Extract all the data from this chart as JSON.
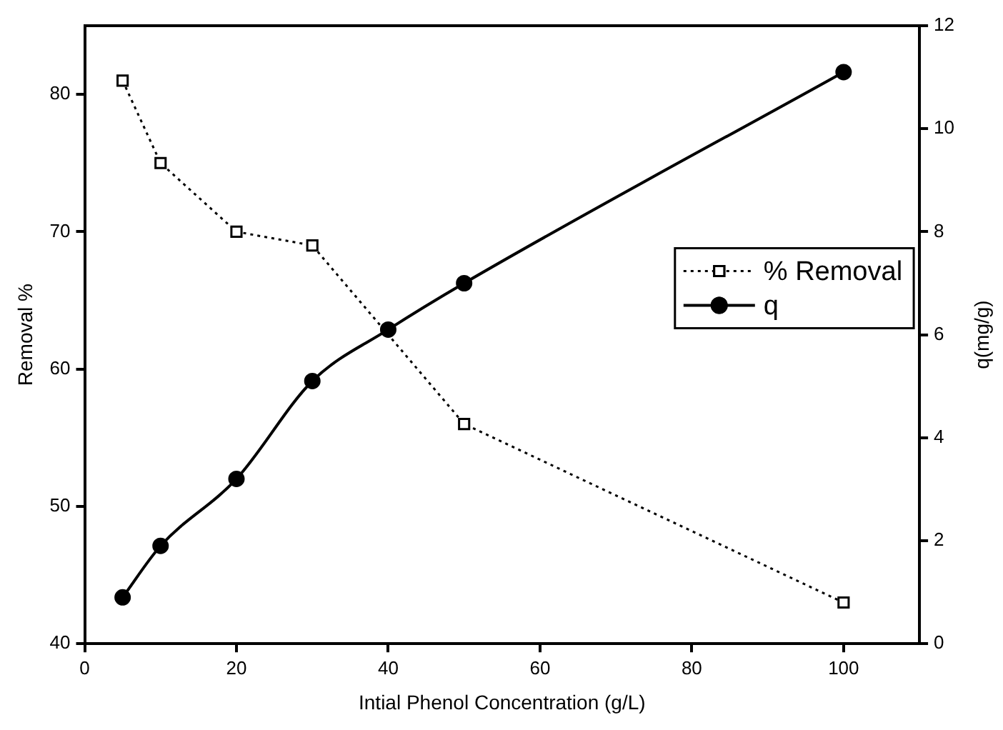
{
  "chart_data": {
    "type": "line",
    "xlabel": "Intial Phenol Concentration (g/L)",
    "ylabel": "Removal %",
    "y2label": "q(mg/g)",
    "x": [
      5,
      10,
      20,
      30,
      40,
      50,
      100
    ],
    "series": [
      {
        "name": "% Removal",
        "color": "#000000",
        "values": [
          81,
          75,
          70,
          69,
          null,
          56,
          43
        ],
        "marker": "square",
        "line_style": "dotted",
        "x": [
          5,
          10,
          20,
          30,
          40,
          50,
          100
        ]
      },
      {
        "name": "q",
        "color": "#000000",
        "values": [
          0.9,
          1.9,
          3.2,
          5.1,
          6.1,
          7.0,
          11.1
        ],
        "marker": "circle",
        "line_style": "solid",
        "axis": "y2"
      }
    ],
    "xlim": [
      0,
      110
    ],
    "xticks": [
      0,
      20,
      40,
      60,
      80,
      100
    ],
    "ylim": [
      40,
      85
    ],
    "yticks": [
      40,
      50,
      60,
      70,
      80
    ],
    "y2lim": [
      0,
      12
    ],
    "y2ticks": [
      0,
      2,
      4,
      6,
      8,
      10,
      12
    ],
    "grid": false,
    "legend": "right"
  }
}
